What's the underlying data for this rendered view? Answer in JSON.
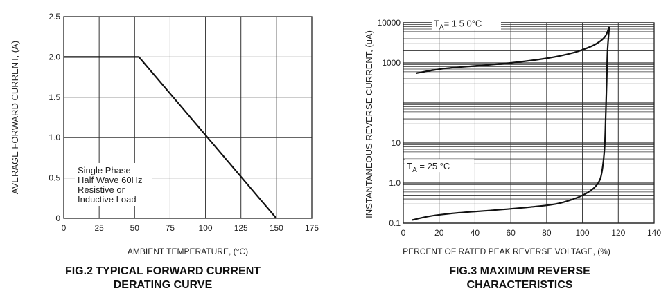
{
  "chart_data": [
    {
      "type": "line",
      "caption": "FIG.2 TYPICAL FORWARD CURRENT\nDERATING CURVE",
      "xlabel": "AMBIENT TEMPERATURE, (°C)",
      "ylabel": "AVERAGE FORWARD CURRENT, (A)",
      "xlim": [
        0,
        175
      ],
      "ylim": [
        0,
        2.5
      ],
      "x_ticks": [
        0,
        25,
        50,
        75,
        100,
        125,
        150,
        175
      ],
      "x_tick_labels": [
        "0",
        "25",
        "50",
        "75",
        "100",
        "125",
        "150",
        "175"
      ],
      "y_ticks": [
        0,
        0.5,
        1.0,
        1.5,
        2.0,
        2.5
      ],
      "y_tick_labels": [
        "0",
        "0.5",
        "1.0",
        "1.5",
        "2.0",
        "2.5"
      ],
      "grid": true,
      "annotation": [
        "Single Phase",
        "Half Wave 60Hz",
        "Resistive or",
        "Inductive Load"
      ],
      "series": [
        {
          "x": [
            0,
            53,
            150
          ],
          "y": [
            2.0,
            2.0,
            0
          ]
        }
      ]
    },
    {
      "type": "line",
      "caption": "FIG.3 MAXIMUM  REVERSE\nCHARACTERISTICS",
      "xlabel": "PERCENT OF RATED PEAK REVERSE VOLTAGE, (%)",
      "ylabel": "INSTANTANEOUS REVERSE CURRENT, (uA)",
      "xlim": [
        0,
        140
      ],
      "ylim": [
        0.1,
        10000
      ],
      "y_scale": "log",
      "x_ticks": [
        0,
        20,
        40,
        60,
        80,
        100,
        120,
        140
      ],
      "x_tick_labels": [
        "0",
        "20",
        "40",
        "60",
        "80",
        "100",
        "120",
        "140"
      ],
      "y_ticks": [
        0.1,
        1.0,
        10,
        1000,
        10000
      ],
      "y_tick_labels": [
        "0.1",
        "1.0",
        "10",
        "1000",
        "10000"
      ],
      "grid": true,
      "series": [
        {
          "label": "T_A= 1 5 0°C",
          "x": [
            7,
            15,
            25,
            40,
            60,
            80,
            95,
            105,
            110,
            113,
            115
          ],
          "y": [
            550,
            640,
            740,
            840,
            1000,
            1300,
            1800,
            2600,
            3500,
            4800,
            8000
          ]
        },
        {
          "label": "T_A = 25 °C",
          "x": [
            5,
            15,
            30,
            50,
            70,
            85,
            95,
            102,
            107,
            110,
            111.5,
            112.5,
            113,
            113.5,
            114,
            115
          ],
          "y": [
            0.12,
            0.15,
            0.18,
            0.21,
            0.25,
            0.3,
            0.4,
            0.55,
            0.8,
            1.3,
            3,
            10,
            50,
            300,
            2000,
            8000
          ]
        }
      ]
    }
  ]
}
